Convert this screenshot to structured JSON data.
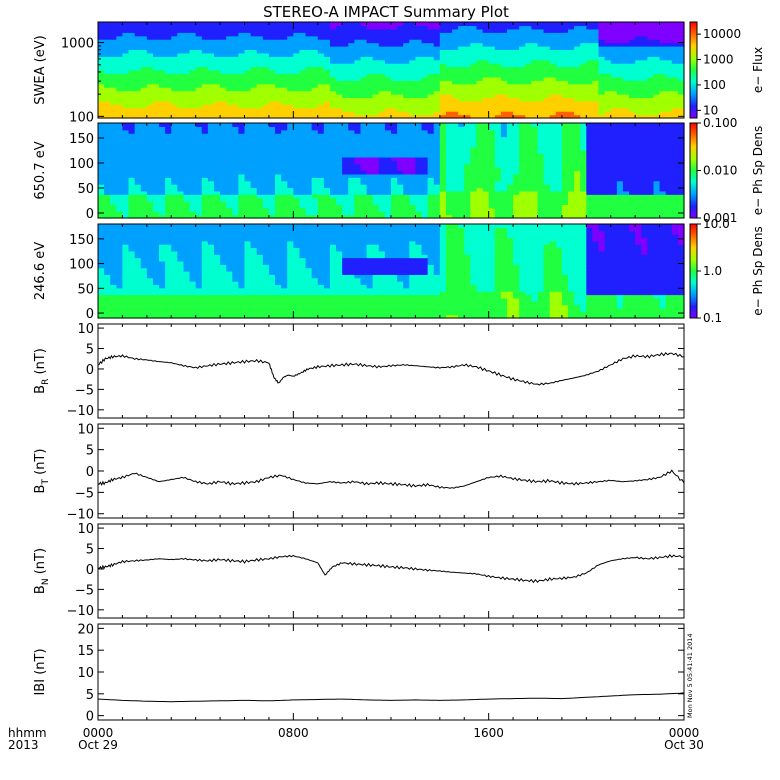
{
  "title": "STEREO-A IMPACT Summary Plot",
  "time_axis": {
    "row1_label": "hhmm",
    "row2_label": "2013",
    "ticks": [
      {
        "hour": 0,
        "label": "0000",
        "sub": "Oct 29"
      },
      {
        "hour": 8,
        "label": "0800",
        "sub": ""
      },
      {
        "hour": 16,
        "label": "1600",
        "sub": ""
      },
      {
        "hour": 24,
        "label": "0000",
        "sub": "Oct 30"
      }
    ]
  },
  "stamp": "Mon Nov  5 05:41:41 2014",
  "colors": {
    "spectro_scale": [
      "#7f00ff",
      "#2020ff",
      "#00a0ff",
      "#00ffd0",
      "#20ff40",
      "#a0ff00",
      "#ffd000",
      "#ff6000",
      "#ff0000"
    ],
    "trace": "#000000"
  },
  "chart_data": [
    {
      "id": "swea",
      "type": "heatmap",
      "ylabel": "SWEA (eV)",
      "yscale": "log",
      "ylim": [
        95,
        1900
      ],
      "yticks": [
        {
          "v": 100,
          "label": "100"
        },
        {
          "v": 1000,
          "label": "1000"
        }
      ],
      "colorbar": {
        "label": "e− Flux",
        "scale": "log",
        "range": [
          5,
          30000
        ],
        "ticks": [
          {
            "v": 10,
            "label": "10"
          },
          {
            "v": 100,
            "label": "100"
          },
          {
            "v": 1000,
            "label": "1000"
          },
          {
            "v": 10000,
            "label": "10000"
          }
        ]
      }
    },
    {
      "id": "pad650",
      "type": "heatmap",
      "ylabel": "650.7 eV",
      "yscale": "linear",
      "ylim": [
        -10,
        180
      ],
      "yticks": [
        {
          "v": 0,
          "label": "0"
        },
        {
          "v": 50,
          "label": "50"
        },
        {
          "v": 100,
          "label": "100"
        },
        {
          "v": 150,
          "label": "150"
        }
      ],
      "colorbar": {
        "label": "e− Ph Sp Dens",
        "scale": "log",
        "range": [
          0.001,
          0.1
        ],
        "ticks": [
          {
            "v": 0.001,
            "label": "0.001"
          },
          {
            "v": 0.01,
            "label": "0.010"
          },
          {
            "v": 0.1,
            "label": "0.100"
          }
        ]
      }
    },
    {
      "id": "pad246",
      "type": "heatmap",
      "ylabel": "246.6 eV",
      "yscale": "linear",
      "ylim": [
        -10,
        180
      ],
      "yticks": [
        {
          "v": 0,
          "label": "0"
        },
        {
          "v": 50,
          "label": "50"
        },
        {
          "v": 100,
          "label": "100"
        },
        {
          "v": 150,
          "label": "150"
        }
      ],
      "colorbar": {
        "label": "e− Ph Sp Dens",
        "scale": "log",
        "range": [
          0.1,
          10
        ],
        "ticks": [
          {
            "v": 0.1,
            "label": "0.1"
          },
          {
            "v": 1,
            "label": "1.0"
          },
          {
            "v": 10,
            "label": "10.0"
          }
        ]
      }
    },
    {
      "id": "br",
      "type": "line",
      "ylabel_main": "B",
      "ylabel_sub": "R",
      "ylabel_unit": " (nT)",
      "ylim": [
        -12,
        11
      ],
      "yticks": [
        {
          "v": -10,
          "label": "−10"
        },
        {
          "v": -5,
          "label": "−5"
        },
        {
          "v": 0,
          "label": "0"
        },
        {
          "v": 5,
          "label": "5"
        },
        {
          "v": 10,
          "label": "10"
        }
      ],
      "x": [
        0,
        0.3,
        0.6,
        1,
        1.5,
        2,
        2.5,
        3,
        3.5,
        4,
        4.5,
        5,
        5.5,
        6,
        6.5,
        7,
        7.2,
        7.4,
        7.6,
        7.8,
        8,
        8.3,
        8.6,
        9,
        9.5,
        10,
        10.5,
        11,
        11.5,
        12,
        12.5,
        13,
        13.5,
        14,
        14.5,
        15,
        15.5,
        16,
        16.5,
        17,
        17.5,
        18,
        18.5,
        19,
        19.5,
        20,
        20.5,
        21,
        21.5,
        22,
        22.5,
        23,
        23.5,
        24
      ],
      "y": [
        1,
        2.5,
        3,
        3.2,
        2.5,
        2.2,
        1.8,
        1.5,
        0.8,
        0.3,
        0.8,
        1.2,
        1.5,
        1.8,
        2,
        1.5,
        -2,
        -3.5,
        -2,
        -1.5,
        -1.8,
        -1,
        0,
        0.5,
        0.8,
        1,
        1.2,
        0.8,
        0.5,
        0.8,
        1,
        0.8,
        0.5,
        0.3,
        0.5,
        1,
        0.5,
        -0.5,
        -1.5,
        -2.5,
        -3.2,
        -3.8,
        -3.5,
        -2.8,
        -2.2,
        -1.5,
        -0.5,
        1,
        2.5,
        3.2,
        3,
        3.5,
        3.8,
        3
      ]
    },
    {
      "id": "bt",
      "type": "line",
      "ylabel_main": "B",
      "ylabel_sub": "T",
      "ylabel_unit": " (nT)",
      "ylim": [
        -11,
        11
      ],
      "yticks": [
        {
          "v": -10,
          "label": "−10"
        },
        {
          "v": -5,
          "label": "−5"
        },
        {
          "v": 0,
          "label": "0"
        },
        {
          "v": 5,
          "label": "5"
        },
        {
          "v": 10,
          "label": "10"
        }
      ],
      "x": [
        0,
        0.3,
        0.6,
        1,
        1.5,
        2,
        2.5,
        3,
        3.5,
        4,
        4.5,
        5,
        5.5,
        6,
        6.5,
        7,
        7.5,
        8,
        8.5,
        9,
        9.5,
        10,
        10.5,
        11,
        11.5,
        12,
        12.5,
        13,
        13.5,
        14,
        14.5,
        15,
        15.5,
        16,
        16.5,
        17,
        17.5,
        18,
        18.5,
        19,
        19.5,
        20,
        20.5,
        21,
        21.5,
        22,
        22.5,
        23,
        23.5,
        24
      ],
      "y": [
        -3,
        -2.8,
        -2,
        -1.5,
        -0.5,
        -1.5,
        -2.5,
        -2,
        -1.5,
        -2.5,
        -3,
        -2.5,
        -3,
        -2.8,
        -2.5,
        -1.5,
        -1,
        -2,
        -2.8,
        -3,
        -2.5,
        -2.8,
        -2.5,
        -3,
        -2.8,
        -3,
        -3.2,
        -3.5,
        -3.2,
        -3.8,
        -4,
        -3.5,
        -2.5,
        -1.5,
        -1.2,
        -1.8,
        -2.2,
        -2.5,
        -2.3,
        -2.8,
        -3,
        -2.8,
        -2.5,
        -2.2,
        -2.5,
        -2.3,
        -2,
        -1.5,
        0,
        -2.8
      ]
    },
    {
      "id": "bn",
      "type": "line",
      "ylabel_main": "B",
      "ylabel_sub": "N",
      "ylabel_unit": " (nT)",
      "ylim": [
        -12,
        11
      ],
      "yticks": [
        {
          "v": -10,
          "label": "−10"
        },
        {
          "v": -5,
          "label": "−5"
        },
        {
          "v": 0,
          "label": "0"
        },
        {
          "v": 5,
          "label": "5"
        },
        {
          "v": 10,
          "label": "10"
        }
      ],
      "x": [
        0,
        0.3,
        0.6,
        1,
        1.5,
        2,
        2.5,
        3,
        3.5,
        4,
        4.5,
        5,
        5.5,
        6,
        6.5,
        7,
        7.5,
        8,
        8.5,
        9,
        9.3,
        9.6,
        10,
        10.5,
        11,
        11.5,
        12,
        12.5,
        13,
        13.5,
        14,
        14.5,
        15,
        15.5,
        16,
        16.5,
        17,
        17.5,
        18,
        18.5,
        19,
        19.5,
        20,
        20.5,
        21,
        21.5,
        22,
        22.5,
        23,
        23.5,
        24
      ],
      "y": [
        0.2,
        0.5,
        1,
        1.8,
        2,
        2.2,
        2.5,
        2.3,
        2.5,
        2.2,
        2,
        2.3,
        2,
        1.8,
        2.2,
        2.5,
        3,
        3.2,
        2.5,
        1.5,
        -1.5,
        0.5,
        1.5,
        1.2,
        1,
        0.8,
        0.5,
        0.3,
        0,
        -0.3,
        -0.5,
        -0.8,
        -1,
        -1.2,
        -1.8,
        -2.2,
        -2.5,
        -2.8,
        -3,
        -2.5,
        -2.3,
        -2,
        -1,
        1,
        2,
        2.5,
        2.8,
        2.5,
        2.8,
        3.2,
        3
      ]
    },
    {
      "id": "babs",
      "type": "line",
      "ylabel_main": "IBI",
      "ylabel_sub": "",
      "ylabel_unit": " (nT)",
      "ylim": [
        -1,
        21
      ],
      "yticks": [
        {
          "v": 0,
          "label": "0"
        },
        {
          "v": 5,
          "label": "5"
        },
        {
          "v": 10,
          "label": "10"
        },
        {
          "v": 15,
          "label": "15"
        },
        {
          "v": 20,
          "label": "20"
        }
      ],
      "x": [
        0,
        1,
        2,
        3,
        4,
        5,
        6,
        7,
        8,
        9,
        10,
        11,
        12,
        13,
        14,
        15,
        16,
        17,
        18,
        19,
        20,
        21,
        22,
        23,
        24
      ],
      "y": [
        3.8,
        3.5,
        3.3,
        3.2,
        3.3,
        3.4,
        3.5,
        3.4,
        3.6,
        3.7,
        3.8,
        3.6,
        3.5,
        3.6,
        3.5,
        3.6,
        3.8,
        3.9,
        4,
        3.9,
        4.2,
        4.5,
        4.8,
        4.9,
        5.2
      ]
    }
  ]
}
